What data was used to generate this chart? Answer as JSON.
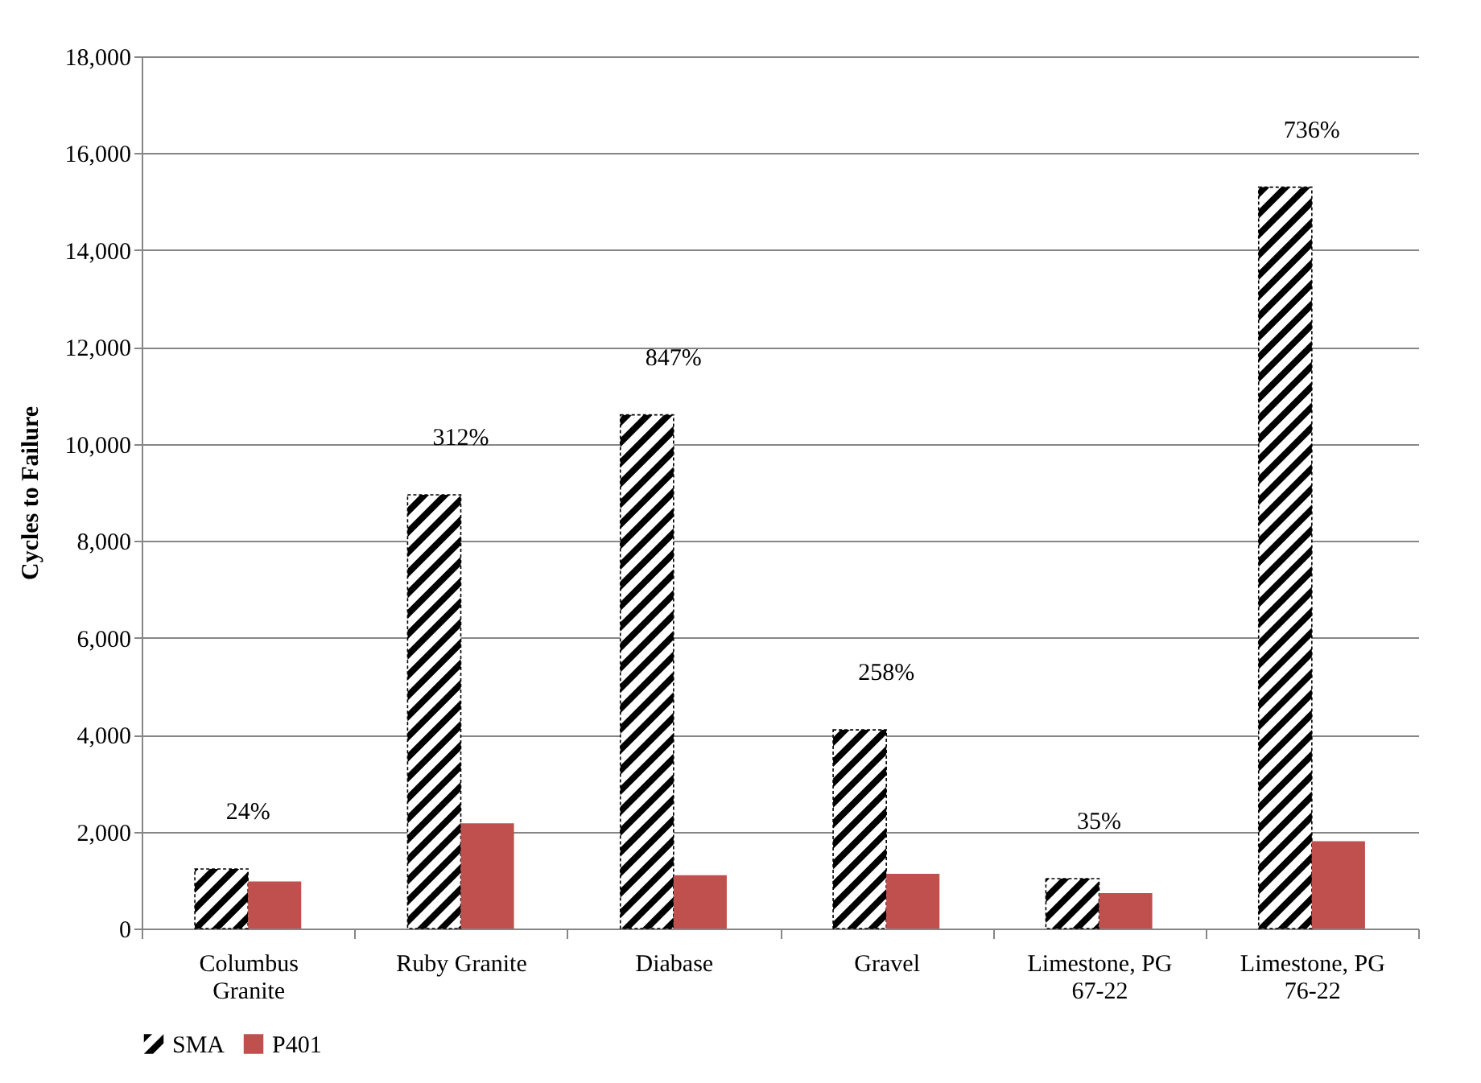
{
  "chart_data": {
    "type": "bar",
    "ylabel": "Cycles to Failure",
    "categories": [
      "Columbus Granite",
      "Ruby Granite",
      "Diabase",
      "Gravel",
      "Limestone, PG 67-22",
      "Limestone, PG 76-22"
    ],
    "series": [
      {
        "name": "SMA",
        "color": "#000000",
        "values": [
          1230,
          8950,
          10600,
          4100,
          1030,
          15300
        ]
      },
      {
        "name": "P401",
        "color": "#c0504d",
        "values": [
          970,
          2170,
          1100,
          1130,
          730,
          1800
        ]
      }
    ],
    "ylim": [
      0,
      18000
    ],
    "yticks": [
      0,
      {
        "value": 2000,
        "label": "2,000"
      },
      {
        "value": 4000,
        "label": "4,000"
      },
      {
        "value": 6000,
        "label": "6,000"
      },
      {
        "value": 8000,
        "label": "8,000"
      },
      {
        "value": 10000,
        "label": "10,000"
      },
      {
        "value": 12000,
        "label": "12,000"
      },
      {
        "value": 14000,
        "label": "14,000"
      },
      {
        "value": 16000,
        "label": "16,000"
      },
      {
        "value": 18000,
        "label": "18,000"
      }
    ],
    "grid": "y",
    "legend": "bottom",
    "annotations": [
      {
        "text": "24%",
        "x": "Columbus Granite",
        "y": 1230
      },
      {
        "text": "312%",
        "x": "Ruby Granite",
        "y": 8950
      },
      {
        "text": "847%",
        "x": "Diabase",
        "y": 10600
      },
      {
        "text": "258%",
        "x": "Gravel",
        "y": 4100
      },
      {
        "text": "35%",
        "x": "Limestone, PG 67-22",
        "y": 1030
      },
      {
        "text": "736%",
        "x": "Limestone, PG 76-22",
        "y": 15300
      }
    ]
  }
}
